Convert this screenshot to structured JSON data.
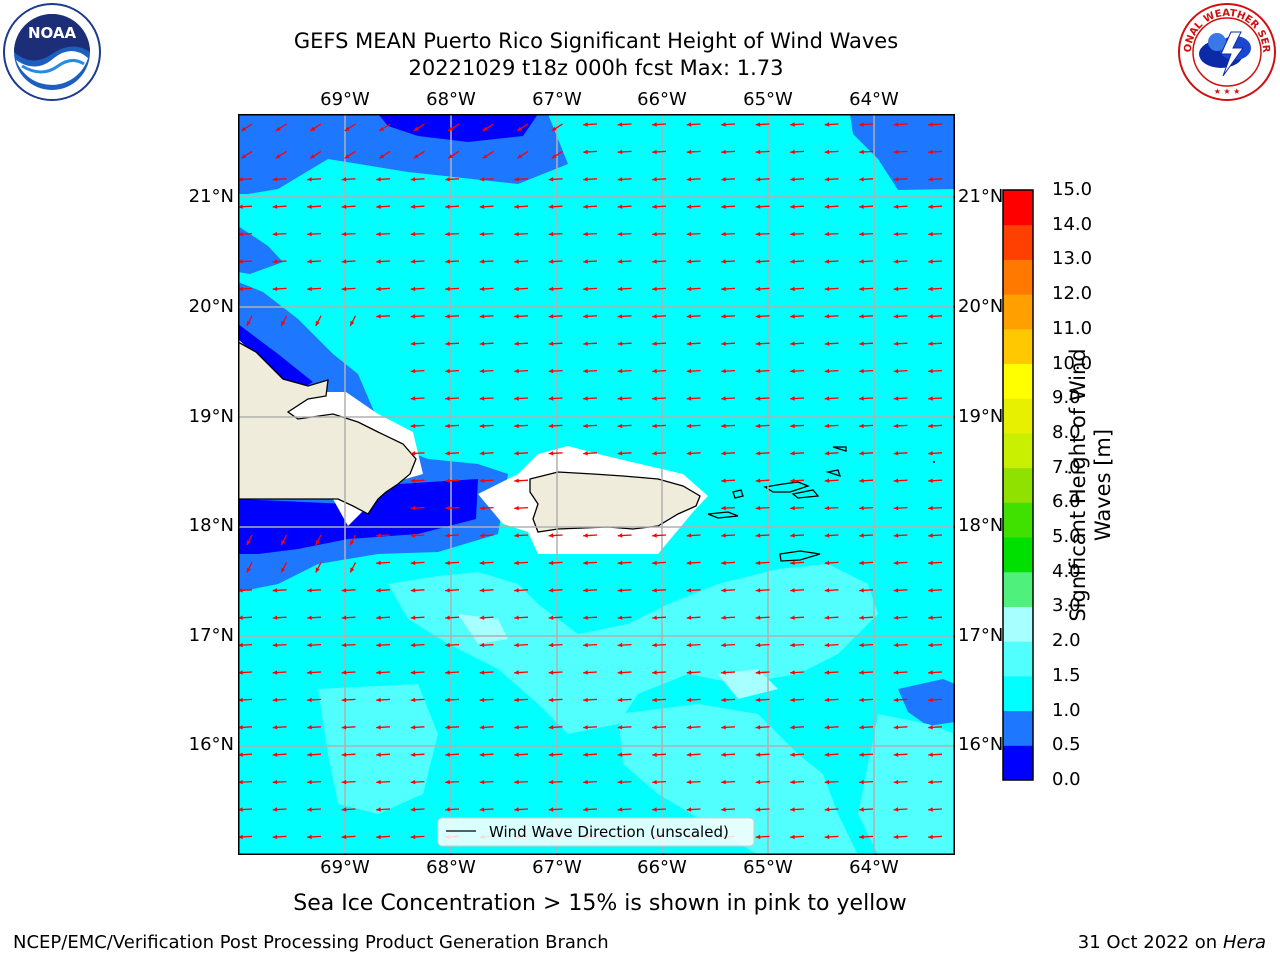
{
  "title": {
    "line1": "GEFS MEAN Puerto Rico Significant Height of Wind Waves",
    "line2": "20221029 t18z 000h fcst   Max: 1.73"
  },
  "map": {
    "lon_labels": [
      "69°W",
      "68°W",
      "67°W",
      "66°W",
      "65°W",
      "64°W"
    ],
    "lat_labels": [
      "21°N",
      "20°N",
      "19°N",
      "18°N",
      "17°N",
      "16°N"
    ],
    "lon_range": [
      -70.0,
      -63.25
    ],
    "lat_range": [
      15.0,
      21.75
    ],
    "land_color": "#efecdc",
    "arrow_color": "#ff0000",
    "grid": true,
    "legend": {
      "label": "Wind Wave Direction (unscaled)",
      "placement": "bottom-center"
    }
  },
  "colorbar": {
    "title": "Significant Height of Wind Waves [m]",
    "title_line1": "Significant Height of Wind",
    "title_line2": "Waves [m]",
    "tick_labels": [
      "0.0",
      "0.5",
      "1.0",
      "1.5",
      "2.0",
      "3.0",
      "4.0",
      "5.0",
      "6.0",
      "7.0",
      "8.0",
      "9.0",
      "10.0",
      "11.0",
      "12.0",
      "13.0",
      "14.0",
      "15.0"
    ],
    "levels": [
      0.0,
      0.5,
      1.0,
      1.5,
      2.0,
      3.0,
      4.0,
      5.0,
      6.0,
      7.0,
      8.0,
      9.0,
      10.0,
      11.0,
      12.0,
      13.0,
      14.0,
      15.0
    ],
    "colors": [
      "#0000ff",
      "#1e78ff",
      "#00ffff",
      "#52ffff",
      "#a8ffff",
      "#50f07c",
      "#00e000",
      "#40e000",
      "#90e000",
      "#c8f000",
      "#e6f000",
      "#ffff00",
      "#ffc800",
      "#ffa000",
      "#ff7800",
      "#ff4000",
      "#ff0000"
    ]
  },
  "chart_data": {
    "type": "heatmap",
    "variable": "Significant Height of Wind Waves",
    "units": "m",
    "max_value": 1.73,
    "dominant_range_m": [
      1.0,
      1.5
    ]
  },
  "caption": "Sea Ice Concentration > 15% is shown in pink to yellow",
  "footer": {
    "left": "NCEP/EMC/Verification Post Processing Product Generation Branch",
    "right_prefix": "31 Oct 2022 on ",
    "right_host": "Hera"
  },
  "logos": {
    "noaa": {
      "text": "NOAA",
      "ring_text": "NATIONAL OCEANIC AND ATMOSPHERIC ADMINISTRATION · U.S. DEPARTMENT OF COMMERCE"
    },
    "nws": {
      "ring_text": "NATIONAL WEATHER SERVICE"
    }
  }
}
